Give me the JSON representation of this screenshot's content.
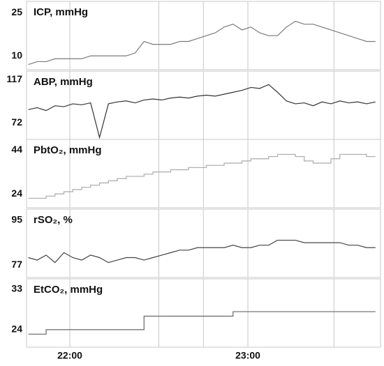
{
  "chart_data": [
    {
      "type": "line",
      "title": "ICP, mmHg",
      "color": "#7a7a7a",
      "step": false,
      "xlim": [
        45.4,
        164.7
      ],
      "x_gridlines": [
        60,
        90,
        105,
        120,
        149
      ],
      "ylim": [
        5.2,
        28.9
      ],
      "yticks": [
        10,
        25
      ],
      "x": [
        46,
        49,
        52,
        55,
        58,
        61,
        64,
        67,
        70,
        73,
        76,
        79,
        82,
        85,
        88,
        91,
        94,
        97,
        100,
        103,
        106,
        109,
        112,
        115,
        118,
        121,
        124,
        127,
        130,
        133,
        136,
        139,
        142,
        145,
        148,
        151,
        154,
        157,
        160,
        163
      ],
      "values": [
        7,
        8,
        8,
        9,
        9,
        9,
        9,
        10,
        10,
        10,
        10,
        10,
        11,
        15,
        14,
        14,
        14,
        15,
        15,
        16,
        17,
        18,
        20,
        21,
        19,
        20,
        18,
        17,
        17,
        20,
        22,
        21,
        21,
        20,
        19,
        18,
        17,
        16,
        15,
        15
      ]
    },
    {
      "type": "line",
      "title": "ABP, mmHg",
      "color": "#333333",
      "step": false,
      "xlim": [
        45.4,
        164.7
      ],
      "x_gridlines": [
        60,
        90,
        105,
        120,
        149
      ],
      "ylim": [
        55,
        126
      ],
      "yticks": [
        72,
        117
      ],
      "x": [
        46,
        49,
        52,
        55,
        58,
        61,
        64,
        67,
        70,
        73,
        76,
        79,
        82,
        85,
        88,
        91,
        94,
        97,
        100,
        103,
        106,
        109,
        112,
        115,
        118,
        121,
        124,
        127,
        130,
        133,
        136,
        139,
        142,
        145,
        148,
        151,
        154,
        157,
        160,
        163
      ],
      "values": [
        86,
        88,
        85,
        90,
        89,
        92,
        91,
        93,
        57,
        92,
        94,
        95,
        93,
        96,
        97,
        96,
        98,
        99,
        98,
        100,
        101,
        100,
        102,
        104,
        106,
        109,
        108,
        112,
        104,
        95,
        92,
        93,
        90,
        94,
        92,
        95,
        93,
        94,
        92,
        94
      ]
    },
    {
      "type": "line",
      "title": "PbtO₂, mmHg",
      "color": "#aaaaaa",
      "step": true,
      "xlim": [
        45.4,
        164.7
      ],
      "x_gridlines": [
        60,
        90,
        105,
        120,
        149
      ],
      "ylim": [
        17.7,
        48.8
      ],
      "yticks": [
        24,
        44
      ],
      "x": [
        46,
        49,
        52,
        55,
        58,
        61,
        64,
        67,
        70,
        73,
        76,
        79,
        82,
        85,
        88,
        91,
        94,
        97,
        100,
        103,
        106,
        109,
        112,
        115,
        118,
        121,
        124,
        127,
        130,
        133,
        136,
        139,
        142,
        145,
        148,
        151,
        154,
        157,
        160,
        163
      ],
      "values": [
        22,
        22,
        23,
        24,
        25,
        26,
        27,
        28,
        29,
        30,
        31,
        32,
        32,
        33,
        34,
        34,
        35,
        35,
        36,
        36,
        37,
        37,
        38,
        38,
        39,
        40,
        40,
        41,
        42,
        42,
        41,
        39,
        38,
        38,
        40,
        42,
        42,
        42,
        41,
        41
      ]
    },
    {
      "type": "line",
      "title": "rSO₂, %",
      "color": "#444444",
      "step": false,
      "xlim": [
        45.4,
        164.7
      ],
      "x_gridlines": [
        60,
        90,
        105,
        120,
        149
      ],
      "ylim": [
        72,
        99.5
      ],
      "yticks": [
        77,
        95
      ],
      "x": [
        46,
        49,
        52,
        55,
        58,
        61,
        64,
        67,
        70,
        73,
        76,
        79,
        82,
        85,
        88,
        91,
        94,
        97,
        100,
        103,
        106,
        109,
        112,
        115,
        118,
        121,
        124,
        127,
        130,
        133,
        136,
        139,
        142,
        145,
        148,
        151,
        154,
        157,
        160,
        163
      ],
      "values": [
        80,
        79,
        81,
        78,
        82,
        80,
        79,
        81,
        80,
        78,
        79,
        80,
        80,
        79,
        80,
        81,
        82,
        83,
        83,
        84,
        84,
        84,
        84,
        85,
        84,
        84,
        85,
        85,
        87,
        87,
        87,
        86,
        86,
        86,
        86,
        86,
        85,
        85,
        84,
        84
      ]
    },
    {
      "type": "line",
      "title": "EtCO₂, mmHg",
      "color": "#666666",
      "step": true,
      "xlim": [
        45.4,
        164.7
      ],
      "x_gridlines": [
        60,
        90,
        105,
        120,
        149
      ],
      "ylim": [
        20.1,
        35.3
      ],
      "yticks": [
        24,
        33
      ],
      "xticks": [
        {
          "value": 60,
          "label": "22:00"
        },
        {
          "value": 120,
          "label": "23:00"
        }
      ],
      "x": [
        46,
        49,
        52,
        55,
        58,
        61,
        64,
        67,
        70,
        73,
        76,
        79,
        82,
        85,
        88,
        91,
        94,
        97,
        100,
        103,
        106,
        109,
        112,
        115,
        118,
        121,
        124,
        127,
        130,
        133,
        136,
        139,
        142,
        145,
        148,
        151,
        154,
        157,
        160,
        163
      ],
      "values": [
        23,
        23,
        24,
        24,
        24,
        24,
        24,
        24,
        24,
        24,
        24,
        24,
        24,
        27,
        27,
        27,
        27,
        27,
        27,
        27,
        27,
        27,
        27,
        28,
        28,
        28,
        28,
        28,
        28,
        28,
        28,
        28,
        28,
        28,
        28,
        28,
        28,
        28,
        28,
        28
      ]
    }
  ]
}
